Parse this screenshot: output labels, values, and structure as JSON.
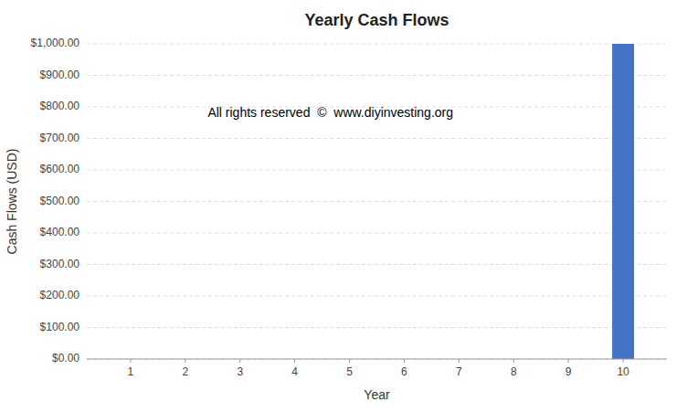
{
  "chart_data": {
    "type": "bar",
    "title": "Yearly Cash Flows",
    "xlabel": "Year",
    "ylabel": "Cash Flows (USD)",
    "x": [
      1,
      2,
      3,
      4,
      5,
      6,
      7,
      8,
      9,
      10
    ],
    "values": [
      0,
      0,
      0,
      0,
      0,
      0,
      0,
      0,
      0,
      1000
    ],
    "color": "#4472C4",
    "xlim": [
      0.2,
      10.8
    ],
    "xticks": [
      1,
      2,
      3,
      4,
      5,
      6,
      7,
      8,
      9,
      10
    ],
    "ylim": [
      0,
      1000
    ],
    "yticks": [
      {
        "value": 0,
        "label": "$0.00"
      },
      {
        "value": 100,
        "label": "$100.00"
      },
      {
        "value": 200,
        "label": "$200.00"
      },
      {
        "value": 300,
        "label": "$300.00"
      },
      {
        "value": 400,
        "label": "$400.00"
      },
      {
        "value": 500,
        "label": "$500.00"
      },
      {
        "value": 600,
        "label": "$600.00"
      },
      {
        "value": 700,
        "label": "$700.00"
      },
      {
        "value": 800,
        "label": "$800.00"
      },
      {
        "value": 900,
        "label": "$900.00"
      },
      {
        "value": 1000,
        "label": "$1,000.00"
      }
    ],
    "grid": true,
    "annotations": [
      "All rights reserved  ©  www.diyinvesting.org"
    ]
  }
}
